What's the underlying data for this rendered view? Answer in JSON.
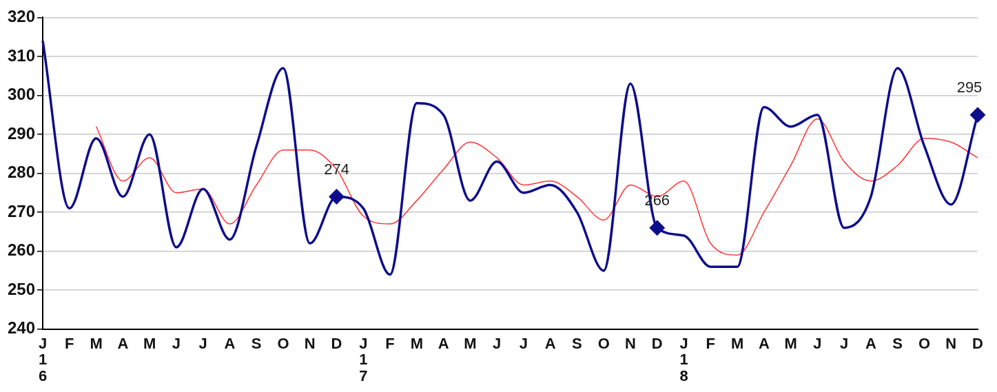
{
  "chart_data": {
    "type": "line",
    "categories": [
      "J16",
      "F",
      "M",
      "A",
      "M",
      "J",
      "J",
      "A",
      "S",
      "O",
      "N",
      "D",
      "J17",
      "F",
      "M",
      "A",
      "M",
      "J",
      "J",
      "A",
      "S",
      "O",
      "N",
      "D",
      "J18",
      "F",
      "M",
      "A",
      "M",
      "J",
      "J",
      "A",
      "S",
      "O",
      "N",
      "D"
    ],
    "series": [
      {
        "color": "#0d0d8c",
        "values": [
          314,
          271,
          289,
          274,
          290,
          261,
          276,
          263,
          287,
          307,
          262,
          274,
          271,
          254,
          298,
          295,
          273,
          283,
          275,
          277,
          270,
          255,
          303,
          266,
          264,
          256,
          256,
          297,
          292,
          295,
          266,
          274,
          307,
          287,
          272,
          295
        ],
        "value_labels": [
          null,
          null,
          null,
          null,
          null,
          null,
          null,
          null,
          null,
          null,
          null,
          "274",
          null,
          null,
          null,
          null,
          null,
          null,
          null,
          null,
          null,
          null,
          null,
          "266",
          null,
          null,
          null,
          null,
          null,
          null,
          null,
          null,
          null,
          null,
          null,
          "295"
        ]
      },
      {
        "color": "#ff3333",
        "marker": "none",
        "values": [
          null,
          null,
          292,
          278,
          284,
          275,
          276,
          267,
          277,
          286,
          286,
          281,
          269,
          267,
          273,
          281,
          288,
          284,
          277,
          278,
          274,
          268,
          277,
          274,
          278,
          262,
          259,
          270,
          282,
          294,
          283,
          278,
          282,
          289,
          288,
          284
        ]
      }
    ],
    "ylim": [
      240,
      320
    ],
    "yticks": [
      240,
      250,
      260,
      270,
      280,
      290,
      300,
      310,
      320
    ],
    "grid": "y",
    "legend": false
  }
}
